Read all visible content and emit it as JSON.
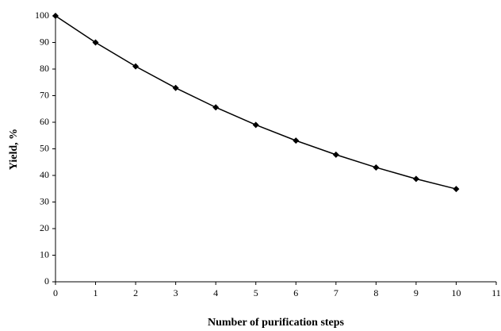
{
  "chart_data": {
    "type": "line",
    "x_label": "Number of purification steps",
    "y_label": "Yield, %",
    "x": [
      0,
      1,
      2,
      3,
      4,
      5,
      6,
      7,
      8,
      9,
      10
    ],
    "values": [
      100,
      90,
      81,
      72.9,
      65.6,
      59,
      53.1,
      47.8,
      43,
      38.7,
      34.9
    ],
    "color": "#000000",
    "xlim": [
      0,
      11
    ],
    "xticks": [
      0,
      1,
      2,
      3,
      4,
      5,
      6,
      7,
      8,
      9,
      10,
      11
    ],
    "ylim": [
      0,
      100
    ],
    "yticks": [
      0,
      10,
      20,
      30,
      40,
      50,
      60,
      70,
      80,
      90,
      100
    ],
    "grid": false
  }
}
